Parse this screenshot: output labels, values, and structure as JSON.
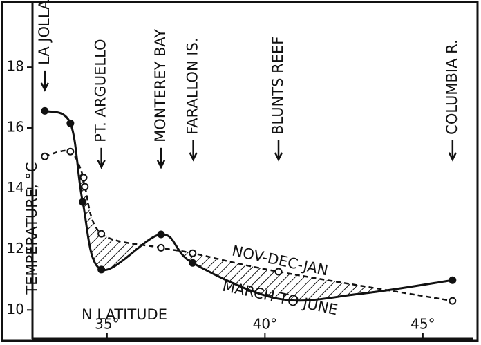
{
  "chart_data": {
    "type": "line",
    "y_label": "TEMPERATURE, °C",
    "x_label": "N LATITUDE",
    "xlim": [
      32.64,
      46.6
    ],
    "ylim": [
      9.05,
      20.1
    ],
    "xticks": [
      {
        "value": 35,
        "label": "35°"
      },
      {
        "value": 40,
        "label": "40°"
      },
      {
        "value": 45,
        "label": "45°"
      }
    ],
    "yticks": [
      10,
      12,
      14,
      16,
      18
    ],
    "series": [
      {
        "name": "MARCH TO JUNE",
        "color": "#111",
        "dashed": false,
        "filled_markers": true,
        "x": [
          33.03,
          33.84,
          34.23,
          34.82,
          36.71,
          37.71,
          40.43,
          43.0,
          45.94
        ],
        "values": [
          16.56,
          16.15,
          13.56,
          11.33,
          12.49,
          11.55,
          10.37,
          10.53,
          10.98
        ],
        "markers": [
          true,
          true,
          true,
          true,
          true,
          true,
          false,
          false,
          true
        ]
      },
      {
        "name": "NOV-DEC-JAN",
        "color": "#111",
        "dashed": true,
        "filled_markers": false,
        "x": [
          33.03,
          33.84,
          34.26,
          34.3,
          34.82,
          36.71,
          37.71,
          40.43,
          45.94
        ],
        "values": [
          15.06,
          15.22,
          14.36,
          14.06,
          12.51,
          12.05,
          11.87,
          11.26,
          10.3
        ],
        "markers": [
          true,
          true,
          true,
          true,
          true,
          true,
          true,
          true,
          true
        ]
      }
    ],
    "annotations": [
      {
        "text": "LA JOLLA",
        "x": 33.03,
        "y": 17.3
      },
      {
        "text": "PT. ARGUELLO",
        "x": 34.82,
        "y": 14.75
      },
      {
        "text": "MONTEREY BAY",
        "x": 36.71,
        "y": 14.75
      },
      {
        "text": "FARALLON IS.",
        "x": 37.73,
        "y": 15.0
      },
      {
        "text": "BLUNTS REEF",
        "x": 40.43,
        "y": 15.0
      },
      {
        "text": "COLUMBIA R.",
        "x": 45.94,
        "y": 15.0
      }
    ],
    "hatch_between_series": true
  }
}
